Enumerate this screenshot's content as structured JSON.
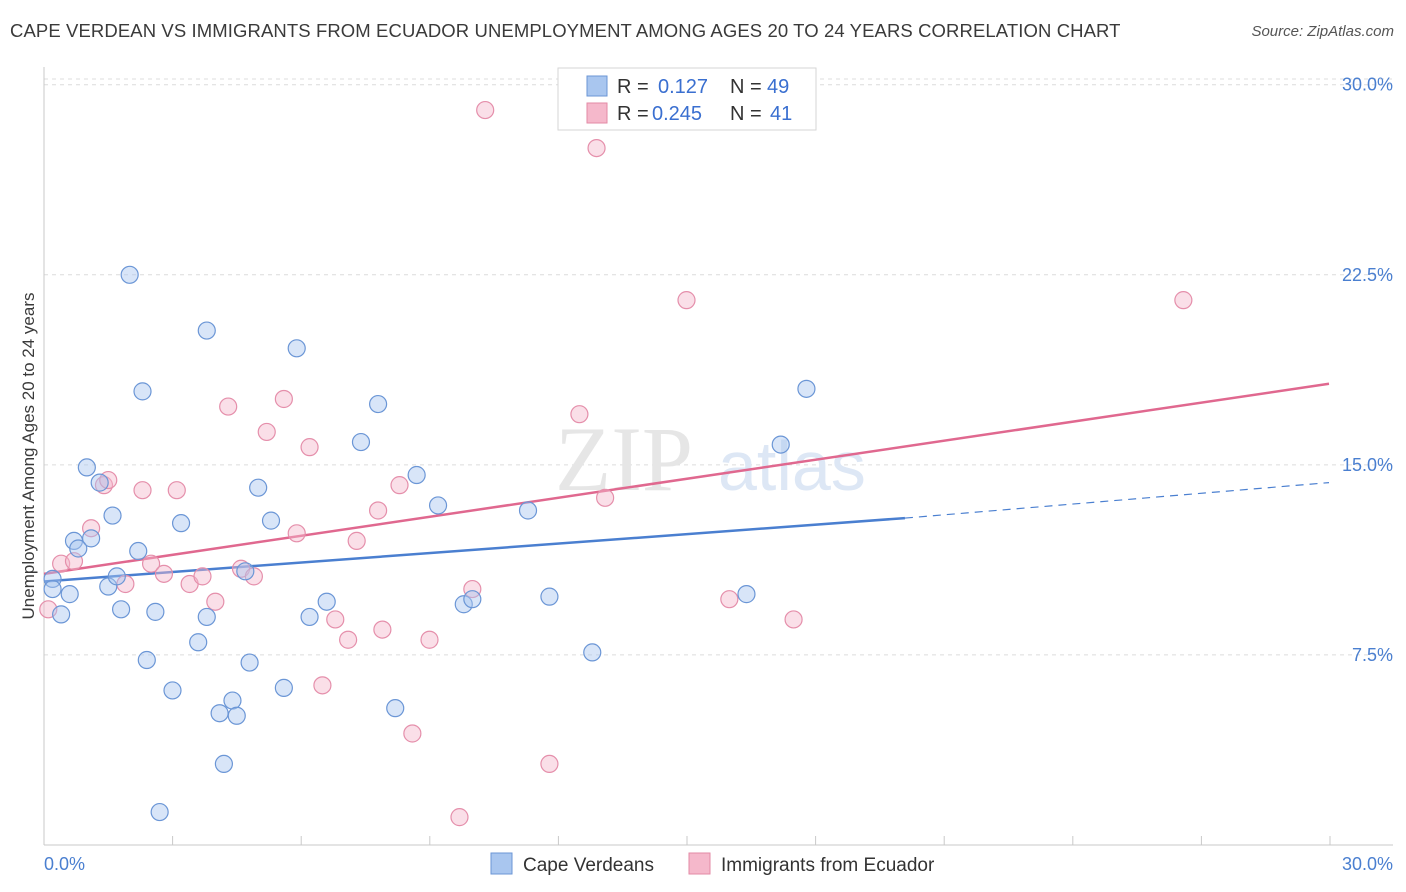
{
  "title": "CAPE VERDEAN VS IMMIGRANTS FROM ECUADOR UNEMPLOYMENT AMONG AGES 20 TO 24 YEARS CORRELATION CHART",
  "source": "Source: ZipAtlas.com",
  "watermark": {
    "zip": "ZIP",
    "atlas": "atlas"
  },
  "legend_top": {
    "rows": [
      {
        "r_label": "R =",
        "r_value": "0.127",
        "n_label": "N =",
        "n_value": "49"
      },
      {
        "r_label": "R =",
        "r_value": "0.245",
        "n_label": "N =",
        "n_value": "41"
      }
    ]
  },
  "chart_data": {
    "type": "scatter",
    "title": "CAPE VERDEAN VS IMMIGRANTS FROM ECUADOR UNEMPLOYMENT AMONG AGES 20 TO 24 YEARS CORRELATION CHART",
    "xlabel": "",
    "ylabel": "Unemployment Among Ages 20 to 24 years",
    "xlim": [
      0,
      30
    ],
    "ylim": [
      0,
      30.7
    ],
    "x_tick_labels": [
      "0.0%",
      "30.0%"
    ],
    "y_ticks": [
      7.5,
      15.0,
      22.5,
      30.0
    ],
    "y_tick_labels": [
      "7.5%",
      "15.0%",
      "22.5%",
      "30.0%"
    ],
    "grid": true,
    "colors": {
      "blue": "#4a7fd0",
      "pink": "#e0688f",
      "blue_fill": "#a9c6ef",
      "pink_fill": "#f5b8cb"
    },
    "series": [
      {
        "name": "Cape Verdeans",
        "R": 0.127,
        "N": 49,
        "trend": {
          "x0": 0,
          "y0": 10.4,
          "x1": 20.1,
          "y1": 12.9,
          "x_dash_end": 30,
          "y_dash_end": 14.3
        },
        "points": [
          [
            0.2,
            10.5
          ],
          [
            0.2,
            10.1
          ],
          [
            0.4,
            9.1
          ],
          [
            0.6,
            9.9
          ],
          [
            0.7,
            12.0
          ],
          [
            0.8,
            11.7
          ],
          [
            1.0,
            14.9
          ],
          [
            1.1,
            12.1
          ],
          [
            1.3,
            14.3
          ],
          [
            1.5,
            10.2
          ],
          [
            1.6,
            13.0
          ],
          [
            1.7,
            10.6
          ],
          [
            1.8,
            9.3
          ],
          [
            2.0,
            22.5
          ],
          [
            2.2,
            11.6
          ],
          [
            2.3,
            17.9
          ],
          [
            2.4,
            7.3
          ],
          [
            2.6,
            9.2
          ],
          [
            2.7,
            1.3
          ],
          [
            3.0,
            6.1
          ],
          [
            3.2,
            12.7
          ],
          [
            3.6,
            8.0
          ],
          [
            3.8,
            9.0
          ],
          [
            3.8,
            20.3
          ],
          [
            4.1,
            5.2
          ],
          [
            4.2,
            3.2
          ],
          [
            4.4,
            5.7
          ],
          [
            4.5,
            5.1
          ],
          [
            4.7,
            10.8
          ],
          [
            4.8,
            7.2
          ],
          [
            5.0,
            14.1
          ],
          [
            5.3,
            12.8
          ],
          [
            5.6,
            6.2
          ],
          [
            5.9,
            19.6
          ],
          [
            6.2,
            9.0
          ],
          [
            6.6,
            9.6
          ],
          [
            7.4,
            15.9
          ],
          [
            7.8,
            17.4
          ],
          [
            8.2,
            5.4
          ],
          [
            8.7,
            14.6
          ],
          [
            9.2,
            13.4
          ],
          [
            9.8,
            9.5
          ],
          [
            10.0,
            9.7
          ],
          [
            11.3,
            13.2
          ],
          [
            11.8,
            9.8
          ],
          [
            12.8,
            7.6
          ],
          [
            16.4,
            9.9
          ],
          [
            17.2,
            15.8
          ],
          [
            17.8,
            18.0
          ]
        ]
      },
      {
        "name": "Immigrants from Ecuador",
        "R": 0.245,
        "N": 41,
        "trend": {
          "x0": 0,
          "y0": 10.7,
          "x1": 30,
          "y1": 18.2
        },
        "points": [
          [
            0.1,
            9.3
          ],
          [
            0.4,
            11.1
          ],
          [
            0.7,
            11.2
          ],
          [
            1.1,
            12.5
          ],
          [
            1.4,
            14.2
          ],
          [
            1.5,
            14.4
          ],
          [
            1.9,
            10.3
          ],
          [
            2.3,
            14.0
          ],
          [
            2.5,
            11.1
          ],
          [
            2.8,
            10.7
          ],
          [
            3.1,
            14.0
          ],
          [
            3.4,
            10.3
          ],
          [
            3.7,
            10.6
          ],
          [
            4.0,
            9.6
          ],
          [
            4.3,
            17.3
          ],
          [
            4.6,
            10.9
          ],
          [
            4.9,
            10.6
          ],
          [
            5.2,
            16.3
          ],
          [
            5.6,
            17.6
          ],
          [
            5.9,
            12.3
          ],
          [
            6.2,
            15.7
          ],
          [
            6.5,
            6.3
          ],
          [
            6.8,
            8.9
          ],
          [
            7.1,
            8.1
          ],
          [
            7.3,
            12.0
          ],
          [
            7.8,
            13.2
          ],
          [
            7.9,
            8.5
          ],
          [
            8.3,
            14.2
          ],
          [
            8.6,
            4.4
          ],
          [
            9.0,
            8.1
          ],
          [
            9.7,
            1.1
          ],
          [
            10.0,
            10.1
          ],
          [
            10.3,
            29.0
          ],
          [
            11.8,
            3.2
          ],
          [
            12.5,
            17.0
          ],
          [
            13.1,
            13.7
          ],
          [
            12.9,
            27.5
          ],
          [
            15.0,
            21.5
          ],
          [
            16.0,
            9.7
          ],
          [
            17.5,
            8.9
          ],
          [
            26.6,
            21.5
          ]
        ]
      }
    ]
  },
  "legend_bottom": [
    "Cape Verdeans",
    "Immigrants from Ecuador"
  ]
}
